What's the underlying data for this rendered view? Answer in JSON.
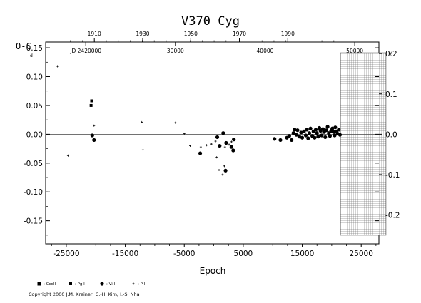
{
  "chart_data": {
    "type": "scatter",
    "title": "V370  Cyg",
    "ylabel": "O-C",
    "ylabel_unit": "d",
    "xlabel": "Epoch",
    "xlim": [
      -28500,
      28000
    ],
    "ylim": [
      -0.19,
      0.16
    ],
    "x_ticks": [
      "-25000",
      "-15000",
      "-5000",
      "5000",
      "15000",
      "25000"
    ],
    "y_ticks_left": [
      "0.15",
      "0.10",
      "0.05",
      "0.00",
      "-0.05",
      "-0.10",
      "-0.15"
    ],
    "y_ticks_right": [
      "0.2",
      "0.1",
      "0.0",
      "-0.1",
      "-0.2"
    ],
    "right_axis_unit": "y",
    "top_year_ticks": [
      "1910",
      "1930",
      "1950",
      "1970",
      "1990"
    ],
    "top_jd_ticks": [
      "JD 2420000",
      "30000",
      "40000",
      "50000"
    ],
    "hatched_region_from_epoch": 21500,
    "legend": [
      {
        "marker": "square",
        "label": ": Ccd I"
      },
      {
        "marker": "square-small",
        "label": ": Pg I"
      },
      {
        "marker": "circle",
        "label": ": Vi I"
      },
      {
        "marker": "plus",
        "label": ": P I"
      }
    ],
    "copyright": "Copyright 2000 J.M. Kreiner, C.-H. Kim, I.-S. Nha",
    "series": [
      {
        "marker": "plus",
        "points": [
          [
            -26500,
            0.118
          ],
          [
            -24700,
            -0.037
          ],
          [
            -20300,
            0.015
          ],
          [
            -12200,
            0.021
          ],
          [
            -12000,
            -0.027
          ],
          [
            -6500,
            0.02
          ],
          [
            -5000,
            0.001
          ],
          [
            -4000,
            -0.02
          ],
          [
            -2200,
            -0.022
          ],
          [
            -1200,
            -0.019
          ],
          [
            -400,
            -0.017
          ],
          [
            300,
            -0.012
          ],
          [
            500,
            -0.04
          ],
          [
            900,
            -0.062
          ],
          [
            1500,
            -0.07
          ],
          [
            1800,
            -0.055
          ],
          [
            1900,
            -0.022
          ],
          [
            2600,
            -0.018
          ],
          [
            3000,
            -0.013
          ]
        ]
      },
      {
        "marker": "square-small",
        "points": [
          [
            -20800,
            0.05
          ],
          [
            -20700,
            0.058
          ]
        ]
      },
      {
        "marker": "circle",
        "points": [
          [
            -20600,
            -0.002
          ],
          [
            -20300,
            -0.01
          ],
          [
            -2300,
            -0.033
          ],
          [
            600,
            -0.005
          ],
          [
            1000,
            -0.02
          ],
          [
            1600,
            0.002
          ],
          [
            2000,
            -0.063
          ],
          [
            2100,
            -0.015
          ],
          [
            3000,
            -0.022
          ],
          [
            3300,
            -0.028
          ],
          [
            3400,
            -0.009
          ],
          [
            10300,
            -0.008
          ],
          [
            11300,
            -0.01
          ],
          [
            12400,
            -0.006
          ],
          [
            12800,
            -0.003
          ],
          [
            13200,
            -0.01
          ],
          [
            13500,
            0.002
          ],
          [
            13700,
            0.008
          ],
          [
            14000,
            -0.001
          ],
          [
            14200,
            0.007
          ],
          [
            14500,
            -0.004
          ],
          [
            14800,
            0.003
          ],
          [
            15000,
            -0.006
          ],
          [
            15300,
            0.005
          ],
          [
            15600,
            -0.002
          ],
          [
            15800,
            0.008
          ],
          [
            16000,
            -0.007
          ],
          [
            16200,
            0.002
          ],
          [
            16400,
            0.01
          ],
          [
            16700,
            -0.003
          ],
          [
            16900,
            0.005
          ],
          [
            17100,
            -0.006
          ],
          [
            17300,
            0.008
          ],
          [
            17500,
            0.002
          ],
          [
            17700,
            -0.004
          ],
          [
            17900,
            0.011
          ],
          [
            18100,
            0.006
          ],
          [
            18300,
            -0.002
          ],
          [
            18500,
            0.009
          ],
          [
            18700,
            0.004
          ],
          [
            18900,
            -0.005
          ],
          [
            19100,
            0.007
          ],
          [
            19300,
            0.013
          ],
          [
            19500,
            0.002
          ],
          [
            19700,
            -0.003
          ],
          [
            19900,
            0.006
          ],
          [
            20100,
            0.01
          ],
          [
            20300,
            0.004
          ],
          [
            20500,
            -0.002
          ],
          [
            20600,
            0.012
          ],
          [
            20800,
            0.005
          ],
          [
            21000,
            0.001
          ],
          [
            21200,
            0.008
          ],
          [
            21400,
            -0.001
          ]
        ]
      }
    ]
  }
}
